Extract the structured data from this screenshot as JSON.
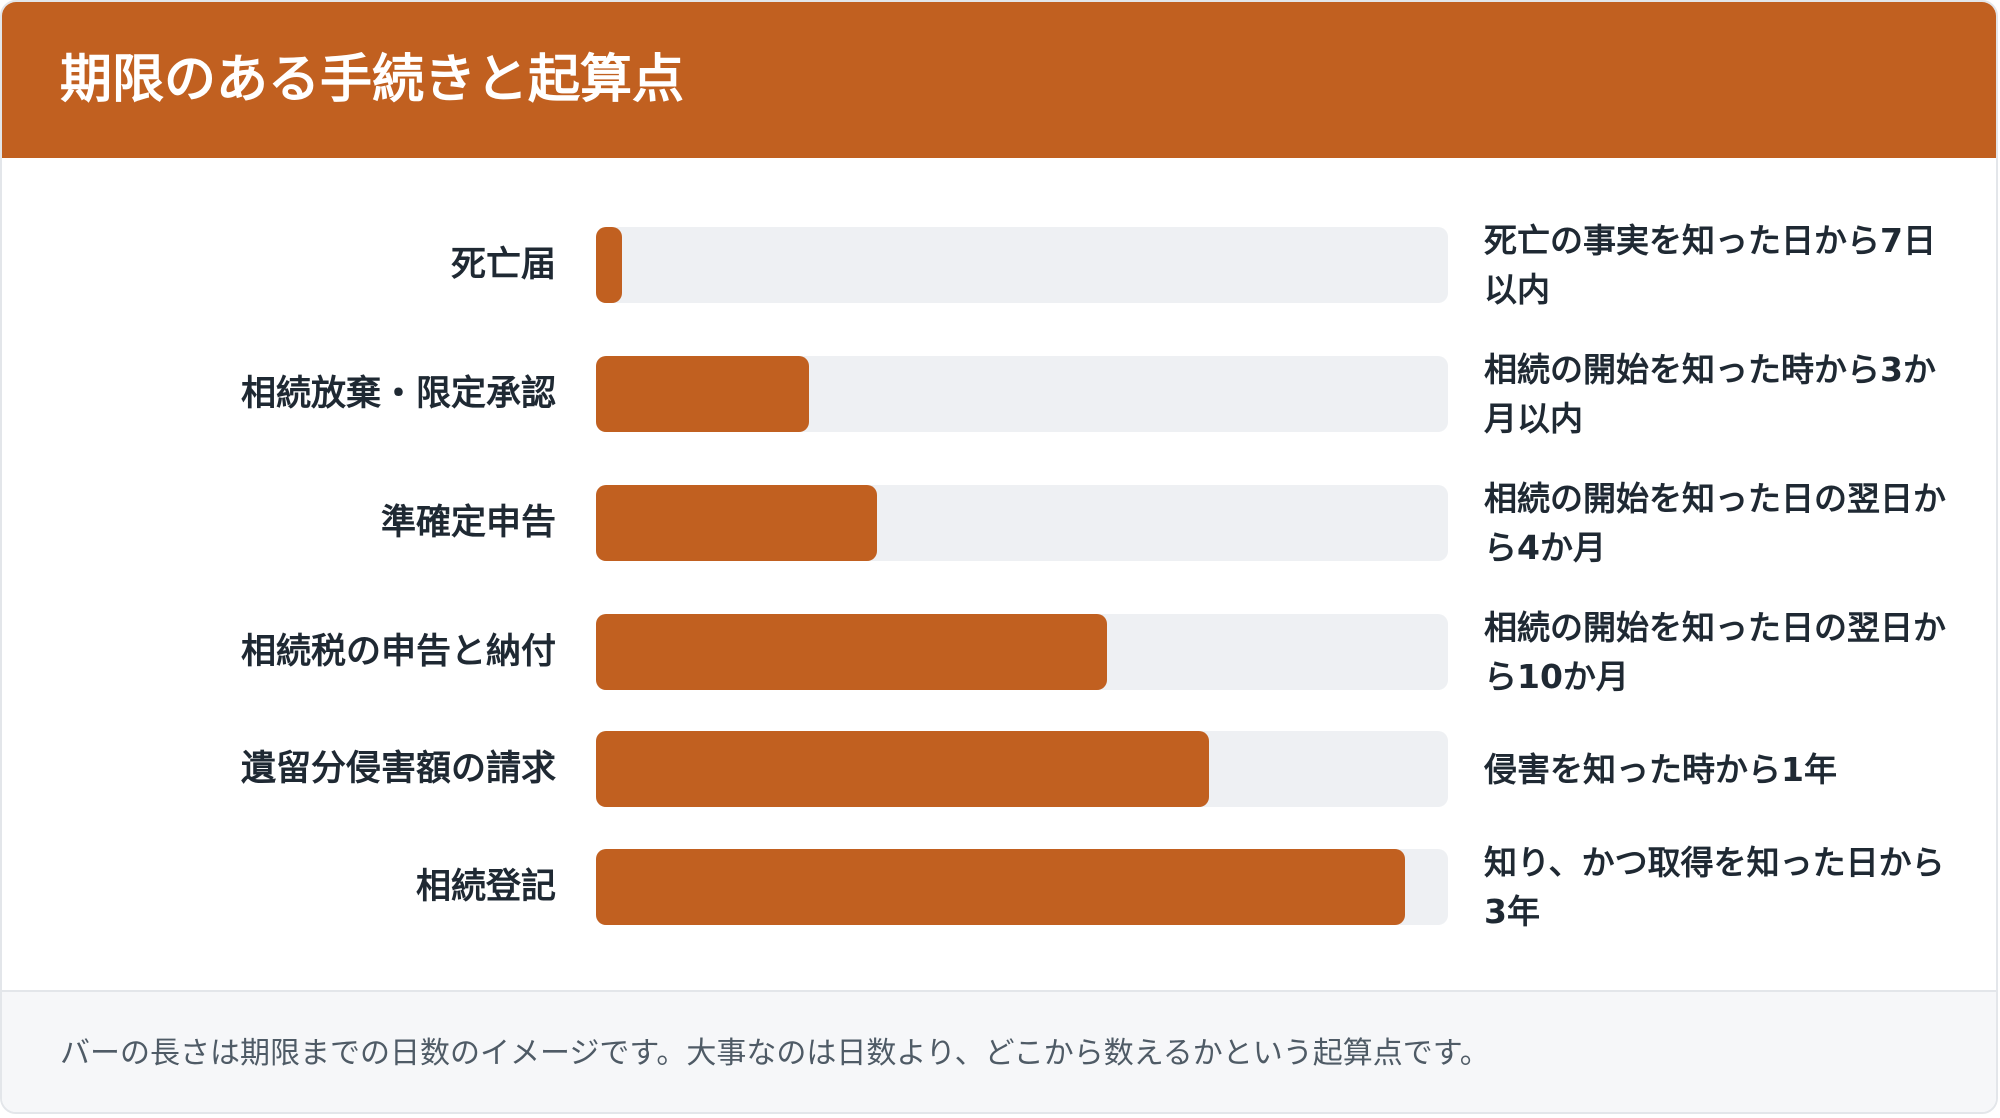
{
  "header": {
    "title": "期限のある手続きと起算点"
  },
  "colors": {
    "accent": "#c16020",
    "track": "#eef0f3",
    "text": "#1f2933",
    "footer_bg": "#f6f7f9",
    "footer_text": "#4f5b66"
  },
  "chart_data": {
    "type": "bar",
    "orientation": "horizontal",
    "title": "期限のある手続きと起算点",
    "xlim": [
      0,
      1
    ],
    "categories": [
      "死亡届",
      "相続放棄・限定承認",
      "準確定申告",
      "相続税の申告と納付",
      "遺留分侵害額の請求",
      "相続登記"
    ],
    "values": [
      0.03,
      0.25,
      0.33,
      0.6,
      0.72,
      0.95
    ],
    "value_note": "バーの長さは期限までの日数のイメージ（相対値）",
    "annotations": [
      "死亡の事実を知った日から7日以内",
      "相続の開始を知った時から3か月以内",
      "相続の開始を知った日の翌日から4か月",
      "相続の開始を知った日の翌日から10か月",
      "侵害を知った時から1年",
      "知り、かつ取得を知った日から3年"
    ]
  },
  "footer": {
    "note": "バーの長さは期限までの日数のイメージです。大事なのは日数より、どこから数えるかという起算点です。"
  }
}
